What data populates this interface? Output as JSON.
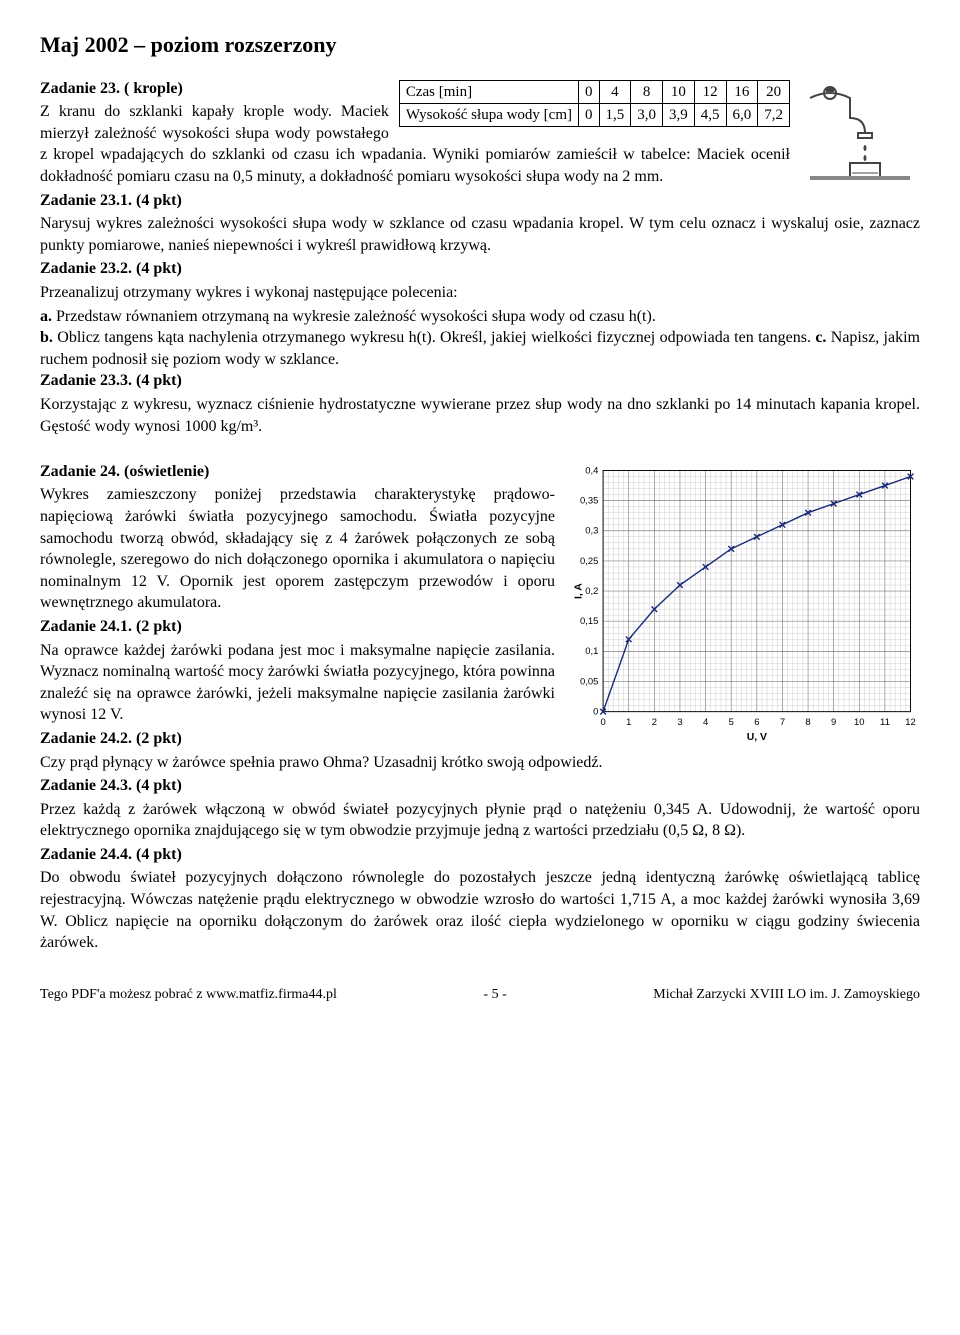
{
  "header": {
    "title": "Maj 2002 – poziom rozszerzony"
  },
  "task23": {
    "heading": "Zadanie 23. ( krople)",
    "intro_a": "Z kranu do szklanki kapały krople wody. Maciek mierzył zależność wysokości słupa wody powstałego z kropel wpadających do szklanki od czasu ich wpadania. Wyniki pomiarów zamieścił w tabelce: Maciek ocenił dokładność pomiaru czasu na 0,5 minuty, a dokładność pomiaru wysokości słupa wody na 2 mm.",
    "table": {
      "row1_label": "Czas [min]",
      "row1": [
        "0",
        "4",
        "8",
        "10",
        "12",
        "16",
        "20"
      ],
      "row2_label": "Wysokość słupa wody [cm]",
      "row2": [
        "0",
        "1,5",
        "3,0",
        "3,9",
        "4,5",
        "6,0",
        "7,2"
      ]
    },
    "sub1_h": "Zadanie 23.1. (4 pkt)",
    "sub1": "Narysuj wykres zależności wysokości słupa wody w szklance od czasu wpadania kropel. W tym celu oznacz i wyskaluj osie, zaznacz punkty pomiarowe, nanieś niepewności i wykreśl prawidłową krzywą.",
    "sub2_h": "Zadanie 23.2. (4 pkt)",
    "sub2_intro": "Przeanalizuj otrzymany wykres i wykonaj następujące polecenia:",
    "sub2a_l": "a.",
    "sub2a": " Przedstaw równaniem otrzymaną na wykresie zależność wysokości słupa wody od czasu h(t).",
    "sub2b_l": "b.",
    "sub2b": " Oblicz tangens kąta nachylenia otrzymanego wykresu h(t). Określ, jakiej wielkości fizycznej odpowiada ten tangens. ",
    "sub2c_l": "c.",
    "sub2c": " Napisz, jakim ruchem podnosił się poziom wody w szklance.",
    "sub3_h": "Zadanie 23.3. (4 pkt)",
    "sub3": "Korzystając z wykresu, wyznacz ciśnienie hydrostatyczne wywierane przez słup wody na dno szklanki po 14 minutach kapania kropel. Gęstość wody wynosi 1000 kg/m³."
  },
  "task24": {
    "heading": "Zadanie 24. (oświetlenie)",
    "intro": "Wykres zamieszczony poniżej przedstawia charakterystykę prądowo-napięciową żarówki światła pozycyjnego samochodu. Światła pozycyjne samochodu tworzą obwód, składający się z 4 żarówek połączonych ze sobą równolegle, szeregowo do nich dołączonego opornika i akumulatora o napięciu nominalnym 12 V. Opornik jest oporem zastępczym przewodów i oporu wewnętrznego akumulatora.",
    "sub1_h": "Zadanie 24.1. (2 pkt)",
    "sub1": "Na oprawce każdej żarówki podana jest moc i maksymalne napięcie zasilania. Wyznacz nominalną wartość mocy żarówki światła pozycyjnego, która powinna znaleźć się na oprawce żarówki, jeżeli maksymalne napięcie zasilania żarówki wynosi 12 V.",
    "sub2_h": "Zadanie 24.2. (2 pkt)",
    "sub2": "Czy prąd płynący w żarówce spełnia prawo Ohma? Uzasadnij krótko swoją odpowiedź.",
    "sub3_h": "Zadanie 24.3. (4 pkt)",
    "sub3": "Przez każdą z żarówek włączoną w obwód świateł pozycyjnych płynie prąd o natężeniu 0,345 A. Udowodnij, że wartość oporu elektrycznego opornika znajdującego się w tym obwodzie przyjmuje jedną z wartości przedziału (0,5 Ω, 8 Ω).",
    "sub4_h": "Zadanie 24.4. (4 pkt)",
    "sub4": "Do obwodu świateł pozycyjnych dołączono równolegle do pozostałych jeszcze jedną identyczną żarówkę oświetlającą tablicę rejestracyjną. Wówczas natężenie prądu elektrycznego w obwodzie wzrosło do wartości 1,715 A, a moc każdej żarówki wynosiła 3,69 W. Oblicz napięcie na oporniku dołączonym do żarówek oraz ilość ciepła wydzielonego w oporniku w ciągu godziny świecenia żarówek.",
    "chart": {
      "type": "line",
      "xlabel": "U, V",
      "ylabel": "I, A",
      "xlim": [
        0,
        12
      ],
      "ylim": [
        0,
        0.4
      ],
      "xticks": [
        0,
        1,
        2,
        3,
        4,
        5,
        6,
        7,
        8,
        9,
        10,
        11,
        12
      ],
      "yticks": [
        0,
        0.05,
        0.1,
        0.15,
        0.2,
        0.25,
        0.3,
        0.35,
        0.4
      ],
      "curve_color": "#1a2a7a",
      "marker_color": "#1a2a7a",
      "marker_style": "x",
      "grid_minor_color": "#c0c0c0",
      "grid_major_color": "#808080",
      "background_color": "#ffffff",
      "axis_fontsize": 10,
      "line_width": 1.5,
      "points_xy": [
        [
          0,
          0
        ],
        [
          1,
          0.12
        ],
        [
          2,
          0.17
        ],
        [
          3,
          0.21
        ],
        [
          4,
          0.24
        ],
        [
          5,
          0.27
        ],
        [
          6,
          0.29
        ],
        [
          7,
          0.31
        ],
        [
          8,
          0.33
        ],
        [
          9,
          0.345
        ],
        [
          10,
          0.36
        ],
        [
          11,
          0.375
        ],
        [
          12,
          0.39
        ]
      ]
    }
  },
  "footer": {
    "left": "Tego PDF'a możesz pobrać z www.matfiz.firma44.pl",
    "center": "- 5 -",
    "right": "Michał Zarzycki  XVIII LO im. J. Zamoyskiego"
  }
}
